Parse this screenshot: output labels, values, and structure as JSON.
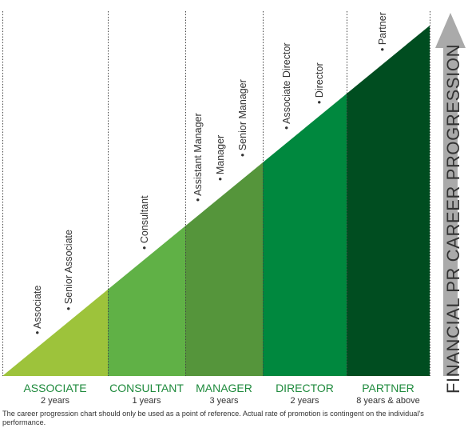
{
  "side_title": "FINANCIAL PR CAREER PROGRESSION",
  "colors": {
    "stage_associate": "#9dc33b",
    "stage_consultant": "#60b146",
    "stage_manager": "#55953b",
    "stage_director": "#00883e",
    "stage_partner": "#004d20",
    "label_green": "#1e8a3c",
    "arrow_grey": "#aaaaaa",
    "text_dark": "#333333"
  },
  "stages": [
    {
      "name": "ASSOCIATE",
      "duration": "2 years",
      "roles": [
        "Associate",
        "Senior Associate"
      ]
    },
    {
      "name": "CONSULTANT",
      "duration": "1 years",
      "roles": [
        "Consultant"
      ]
    },
    {
      "name": "MANAGER",
      "duration": "3 years",
      "roles": [
        "Assistant Manager",
        "Manager",
        "Senior Manager"
      ]
    },
    {
      "name": "DIRECTOR",
      "duration": "2 years",
      "roles": [
        "Associate Director",
        "Director"
      ]
    },
    {
      "name": "PARTNER",
      "duration": "8 years & above",
      "roles": [
        "Partner"
      ]
    }
  ],
  "footnote": "The career progression chart should only be used as a point of reference.  Actual rate of promotion is contingent on the individual's performance."
}
